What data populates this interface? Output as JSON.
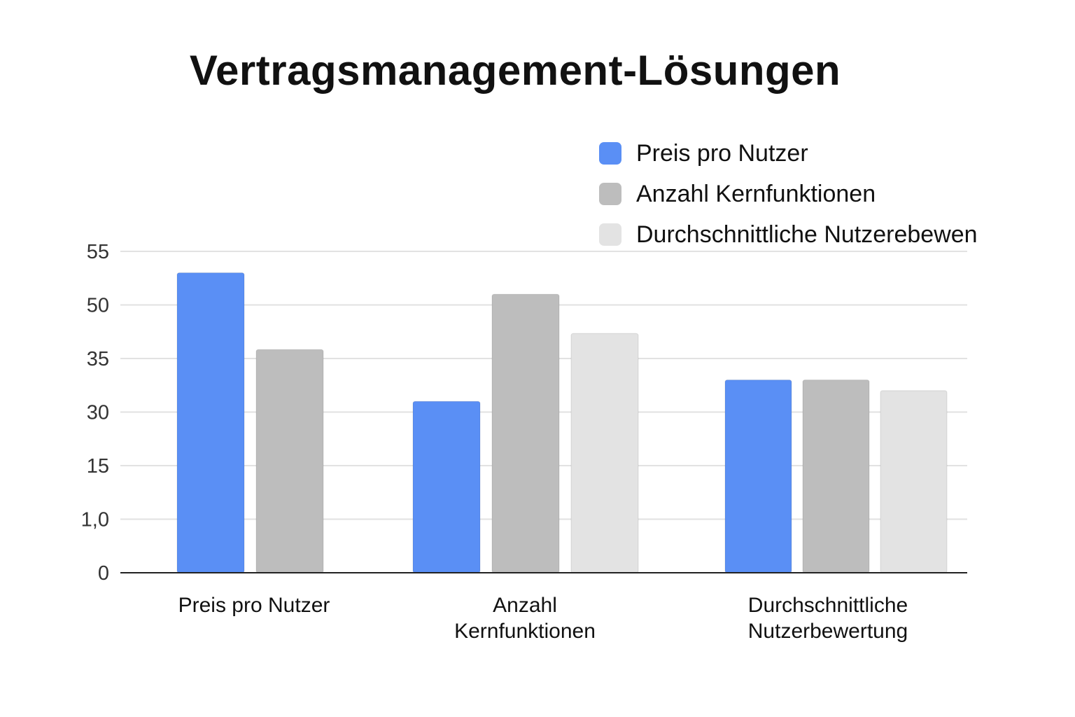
{
  "chart_data": {
    "type": "bar",
    "title": "Vertragsmanagement-Lösungen",
    "xlabel": "",
    "ylabel": "",
    "categories": [
      [
        "Preis pro Nutzer"
      ],
      [
        "Anzahl",
        "Kernfunktionen"
      ],
      [
        "Durchschnittliche",
        "Nutzerbewertung"
      ]
    ],
    "y_ticks": [
      "0",
      "1,0",
      "15",
      "30",
      "35",
      "50",
      "55"
    ],
    "series": [
      {
        "name": "Preis pro Nutzer",
        "color": "#5a8ff5",
        "values": [
          53,
          31,
          33
        ]
      },
      {
        "name": "Anzahl Kernfunktionen",
        "color": "#bdbdbd",
        "values": [
          37.5,
          51,
          33
        ]
      },
      {
        "name": "Durchschnittliche Nutzerebewen",
        "color": "#e3e3e3",
        "values": [
          null,
          42,
          32
        ]
      }
    ],
    "grid": true,
    "legend_position": "top-right"
  }
}
